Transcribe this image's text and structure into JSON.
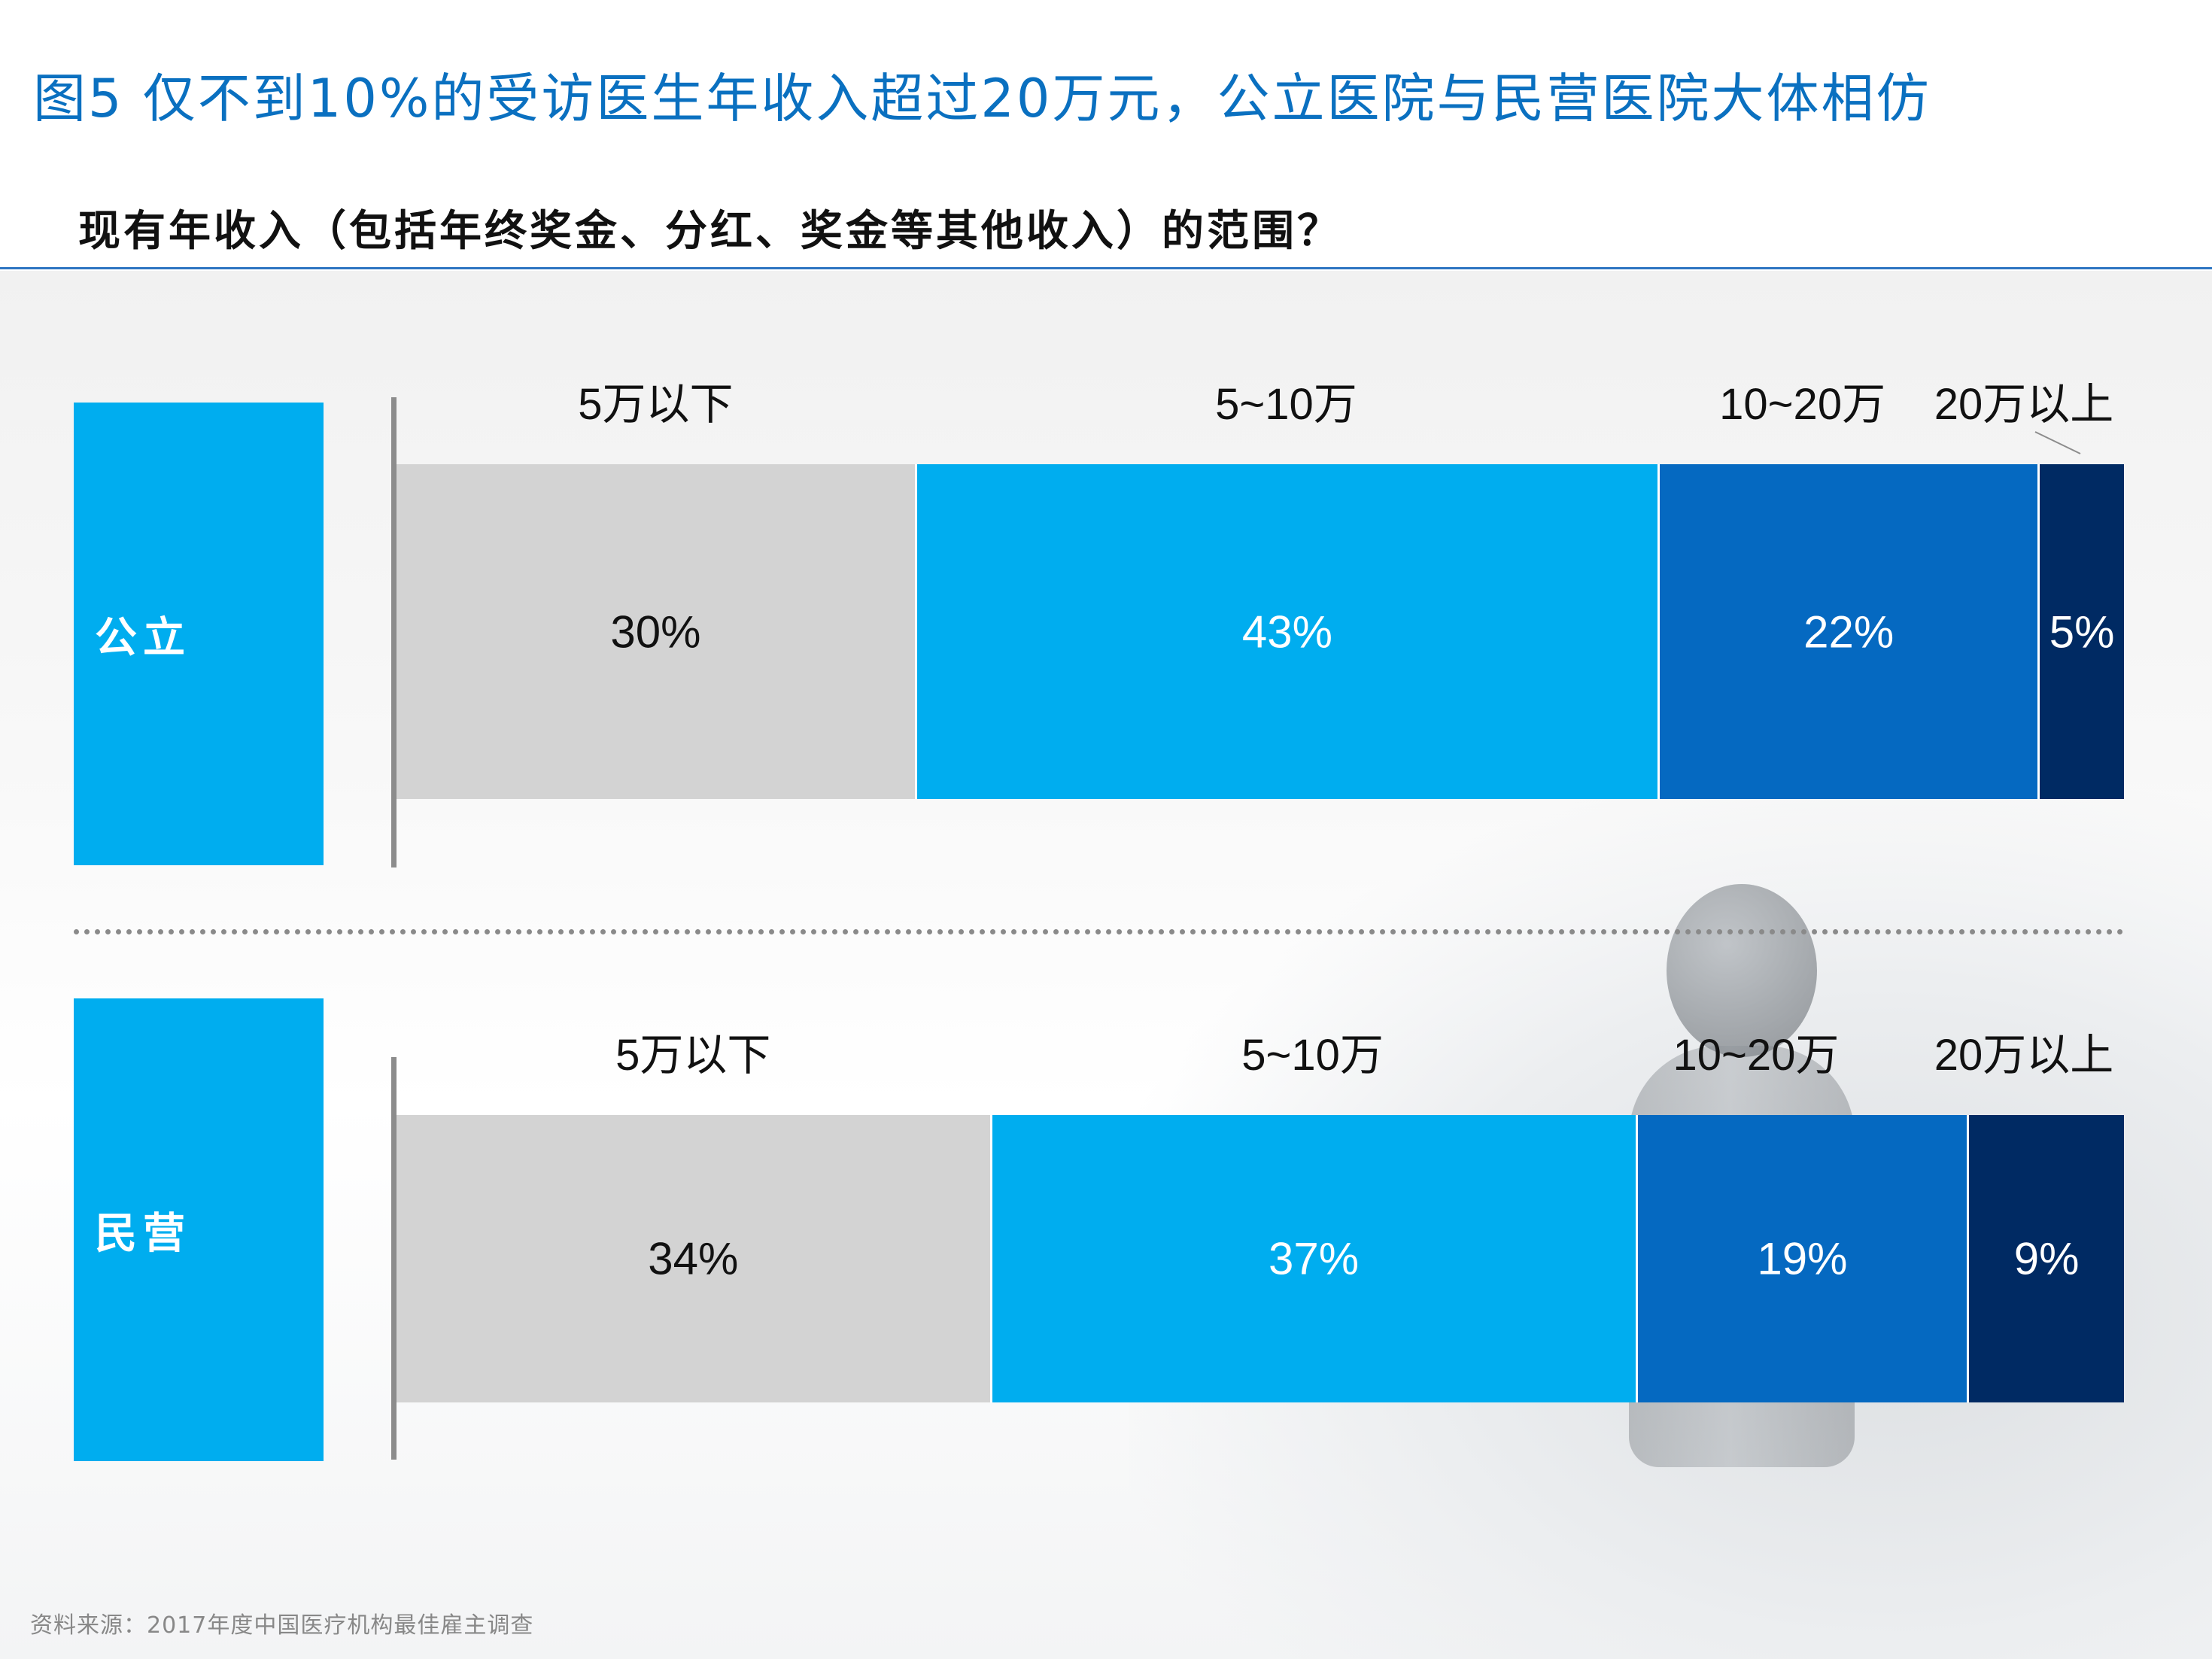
{
  "title": "图5 仅不到10%的受访医生年收入超过20万元，公立医院与民营医院大体相仿",
  "subtitle": "现有年收入（包括年终奖金、分红、奖金等其他收入）的范围？",
  "source": "资料来源：2017年度中国医疗机构最佳雇主调查",
  "colors": {
    "label_block": "#00adef",
    "below_5": "#d3d3d3",
    "5_10": "#00adef",
    "10_20": "#0569c1",
    "above_20": "#002a63"
  },
  "chart_data": [
    {
      "type": "bar",
      "orientation": "horizontal-stacked-100",
      "category": "公立",
      "series": [
        {
          "name": "5万以下",
          "value": 30,
          "label": "30%"
        },
        {
          "name": "5~10万",
          "value": 43,
          "label": "43%"
        },
        {
          "name": "10~20万",
          "value": 22,
          "label": "22%"
        },
        {
          "name": "20万以上",
          "value": 5,
          "label": "5%"
        }
      ]
    },
    {
      "type": "bar",
      "orientation": "horizontal-stacked-100",
      "category": "民营",
      "series": [
        {
          "name": "5万以下",
          "value": 34,
          "label": "34%"
        },
        {
          "name": "5~10万",
          "value": 37,
          "label": "37%"
        },
        {
          "name": "10~20万",
          "value": 19,
          "label": "19%"
        },
        {
          "name": "20万以上",
          "value": 9,
          "label": "9%"
        }
      ]
    }
  ]
}
